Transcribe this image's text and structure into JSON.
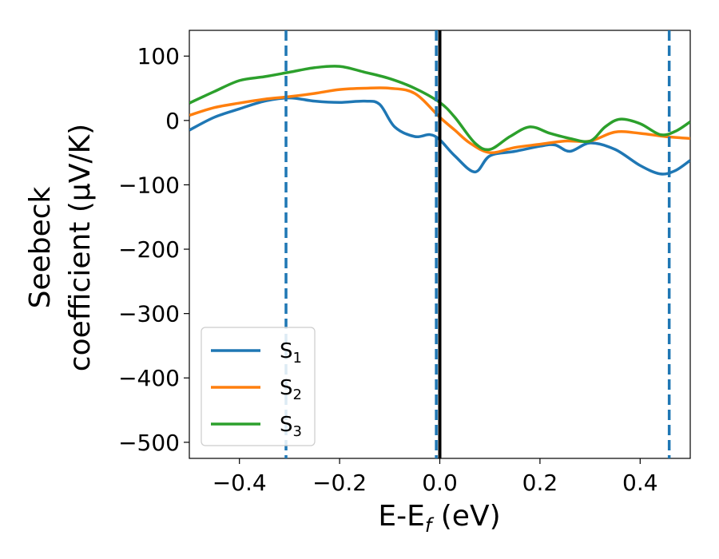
{
  "chart_data": {
    "type": "line",
    "xlabel": "E-E",
    "xlabel_sub": "f",
    "xlabel_unit": " (eV)",
    "ylabel_line1": "Seebeck",
    "ylabel_line2": "coefficient  (μV/K)",
    "xlim": [
      -0.5,
      0.5
    ],
    "ylim": [
      -525,
      140
    ],
    "xticks": [
      -0.4,
      -0.2,
      0.0,
      0.2,
      0.4
    ],
    "xtick_labels": [
      "−0.4",
      "−0.2",
      "0.0",
      "0.2",
      "0.4"
    ],
    "yticks": [
      100,
      0,
      -100,
      -200,
      -300,
      -400,
      -500
    ],
    "ytick_labels": [
      "100",
      "0",
      "−100",
      "−200",
      "−300",
      "−400",
      "−500"
    ],
    "grid": false,
    "legend_position": "bottom-left",
    "vlines_dashed": [
      -0.307,
      -0.007,
      0.458
    ],
    "vline_solid": 0.0,
    "series": [
      {
        "name": "S",
        "sub": "1",
        "color": "#1f77b4",
        "x": [
          -0.5,
          -0.45,
          -0.4,
          -0.35,
          -0.3,
          -0.25,
          -0.2,
          -0.15,
          -0.12,
          -0.09,
          -0.05,
          -0.02,
          0.0,
          0.03,
          0.07,
          0.1,
          0.15,
          0.2,
          0.23,
          0.26,
          0.3,
          0.35,
          0.4,
          0.44,
          0.47,
          0.5
        ],
        "y": [
          -15,
          5,
          18,
          30,
          35,
          30,
          28,
          30,
          25,
          -10,
          -25,
          -22,
          -30,
          -55,
          -80,
          -55,
          -48,
          -40,
          -38,
          -48,
          -35,
          -45,
          -70,
          -83,
          -78,
          -62
        ]
      },
      {
        "name": "S",
        "sub": "2",
        "color": "#ff7f0e",
        "x": [
          -0.5,
          -0.45,
          -0.4,
          -0.35,
          -0.3,
          -0.25,
          -0.2,
          -0.15,
          -0.1,
          -0.05,
          0.0,
          0.03,
          0.06,
          0.1,
          0.15,
          0.2,
          0.25,
          0.3,
          0.35,
          0.4,
          0.45,
          0.5
        ],
        "y": [
          8,
          20,
          27,
          33,
          37,
          42,
          48,
          50,
          50,
          42,
          5,
          -15,
          -35,
          -50,
          -42,
          -37,
          -32,
          -32,
          -18,
          -20,
          -25,
          -28
        ]
      },
      {
        "name": "S",
        "sub": "3",
        "color": "#2ca02c",
        "x": [
          -0.5,
          -0.45,
          -0.4,
          -0.35,
          -0.3,
          -0.25,
          -0.2,
          -0.15,
          -0.1,
          -0.05,
          0.0,
          0.03,
          0.07,
          0.1,
          0.14,
          0.18,
          0.22,
          0.26,
          0.3,
          0.33,
          0.36,
          0.4,
          0.44,
          0.47,
          0.5
        ],
        "y": [
          27,
          45,
          62,
          68,
          75,
          82,
          84,
          75,
          65,
          50,
          28,
          5,
          -35,
          -45,
          -25,
          -10,
          -20,
          -28,
          -32,
          -10,
          2,
          -5,
          -22,
          -17,
          -2
        ]
      }
    ]
  }
}
